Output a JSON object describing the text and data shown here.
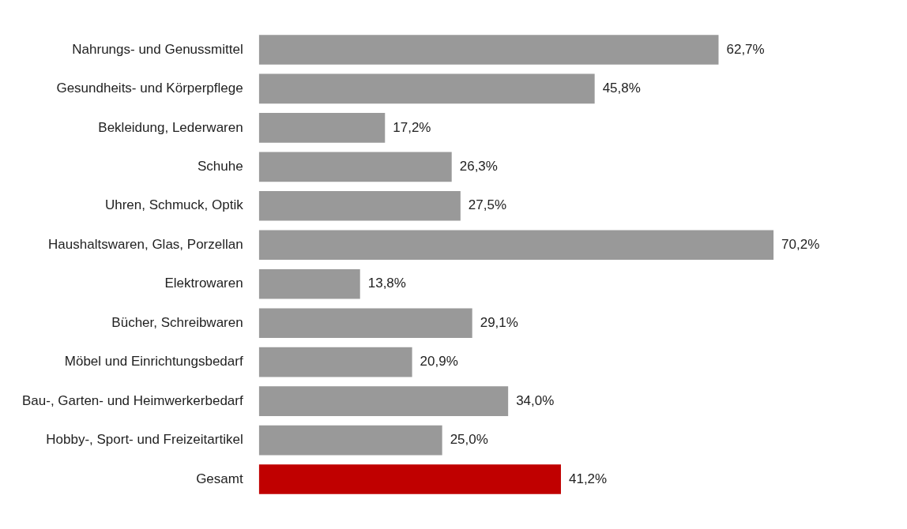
{
  "chart_data": {
    "type": "bar",
    "orientation": "horizontal",
    "categories": [
      "Nahrungs- und Genussmittel",
      "Gesundheits- und Körperpflege",
      "Bekleidung, Lederwaren",
      "Schuhe",
      "Uhren, Schmuck, Optik",
      "Haushaltswaren, Glas, Porzellan",
      "Elektrowaren",
      "Bücher, Schreibwaren",
      "Möbel und Einrichtungsbedarf",
      "Bau-, Garten- und Heimwerkerbedarf",
      "Hobby-, Sport- und Freizeitartikel",
      "Gesamt"
    ],
    "values": [
      62.7,
      45.8,
      17.2,
      26.3,
      27.5,
      70.2,
      13.8,
      29.1,
      20.9,
      34.0,
      25.0,
      41.2
    ],
    "value_labels": [
      "62,7%",
      "45,8%",
      "17,2%",
      "26,3%",
      "27,5%",
      "70,2%",
      "13,8%",
      "29,1%",
      "20,9%",
      "34,0%",
      "25,0%",
      "41,2%"
    ],
    "colors": [
      "#999999",
      "#999999",
      "#999999",
      "#999999",
      "#999999",
      "#999999",
      "#999999",
      "#999999",
      "#999999",
      "#999999",
      "#999999",
      "#c00000"
    ]
  }
}
